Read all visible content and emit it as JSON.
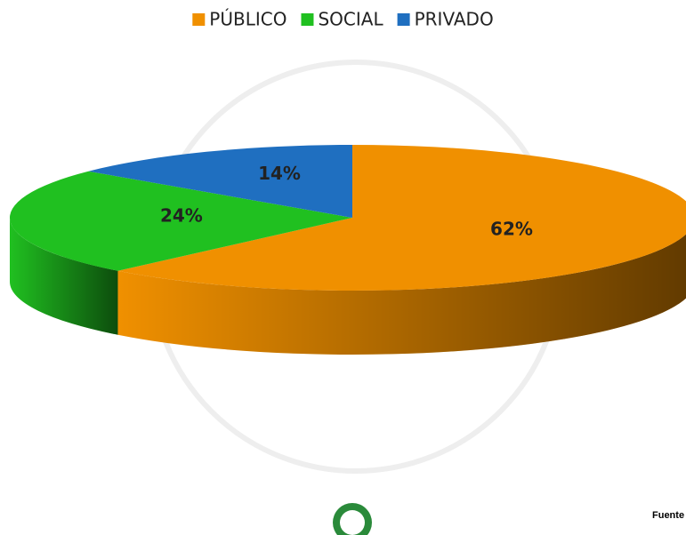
{
  "chart_data": {
    "type": "pie3d",
    "categories": [
      "PÚBLICO",
      "SOCIAL",
      "PRIVADO"
    ],
    "values": [
      62,
      24,
      14
    ],
    "value_labels": [
      "62%",
      "24%",
      "14%"
    ],
    "colors": [
      "#f09000",
      "#20c020",
      "#1f6fc0"
    ],
    "legend": "top",
    "source": "Fuente"
  }
}
